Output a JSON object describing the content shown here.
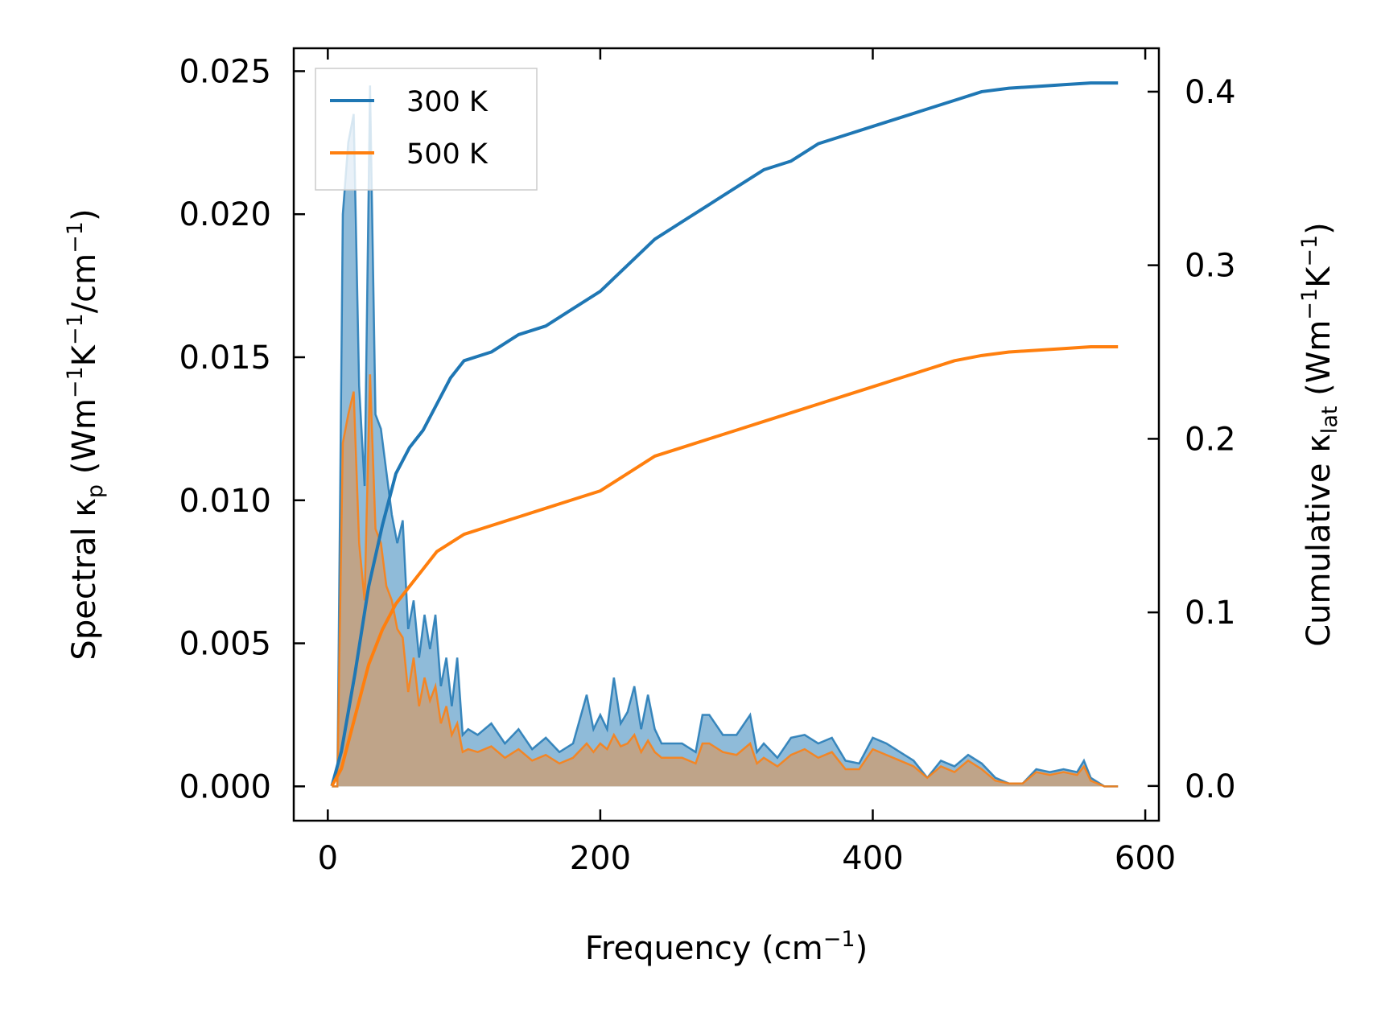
{
  "chart_data": {
    "type": "line",
    "title": "",
    "xlabel": {
      "main": "Frequency (cm",
      "sup": "−1",
      "tail": ")"
    },
    "ylabel_left": {
      "a": "Spectral κ",
      "sub": "p",
      "b": " (Wm",
      "sup1": "−1",
      "c": "K",
      "sup2": "−1",
      "d": "/cm",
      "sup3": "−1",
      "e": ")"
    },
    "ylabel_right": {
      "a": "Cumulative κ",
      "sub": "lat",
      "b": " (Wm",
      "sup1": "−1",
      "c": "K",
      "sup2": "−1",
      "d": ")"
    },
    "xlim": [
      -25,
      610
    ],
    "ylim_left": [
      -0.0012,
      0.0258
    ],
    "ylim_right": [
      -0.02,
      0.425
    ],
    "xticks": [
      0,
      200,
      400,
      600
    ],
    "xtick_labels": [
      "0",
      "200",
      "400",
      "600"
    ],
    "yticks_left": [
      0.0,
      0.005,
      0.01,
      0.015,
      0.02,
      0.025
    ],
    "ytick_labels_left": [
      "0.000",
      "0.005",
      "0.010",
      "0.015",
      "0.020",
      "0.025"
    ],
    "yticks_right": [
      0.0,
      0.1,
      0.2,
      0.3,
      0.4
    ],
    "ytick_labels_right": [
      "0.0",
      "0.1",
      "0.2",
      "0.3",
      "0.4"
    ],
    "legend_position": "top-left",
    "colors": {
      "series_300": "#1f77b4",
      "series_500": "#ff7f0e",
      "fill_500": "#c8a07a"
    },
    "spectral": {
      "x": [
        3,
        7,
        11,
        15,
        19,
        23,
        27,
        31,
        35,
        39,
        43,
        47,
        51,
        55,
        59,
        63,
        67,
        71,
        75,
        79,
        83,
        87,
        91,
        95,
        99,
        103,
        110,
        120,
        130,
        140,
        150,
        160,
        170,
        180,
        190,
        195,
        200,
        205,
        210,
        215,
        220,
        225,
        230,
        235,
        240,
        245,
        250,
        260,
        270,
        275,
        280,
        290,
        300,
        310,
        315,
        320,
        330,
        340,
        350,
        360,
        370,
        380,
        390,
        400,
        410,
        420,
        430,
        440,
        450,
        460,
        470,
        480,
        490,
        500,
        510,
        520,
        530,
        540,
        550,
        555,
        560,
        570,
        580
      ],
      "series": [
        {
          "name": "300 K",
          "values": [
            0,
            0,
            0.02,
            0.0225,
            0.0235,
            0.014,
            0.0105,
            0.0245,
            0.013,
            0.0125,
            0.011,
            0.0095,
            0.0085,
            0.0093,
            0.0055,
            0.0065,
            0.0045,
            0.006,
            0.0048,
            0.006,
            0.0035,
            0.0045,
            0.0028,
            0.0045,
            0.0018,
            0.002,
            0.0018,
            0.0022,
            0.0015,
            0.002,
            0.0013,
            0.0017,
            0.0012,
            0.0015,
            0.0032,
            0.002,
            0.0025,
            0.002,
            0.0038,
            0.0022,
            0.0026,
            0.0035,
            0.002,
            0.0032,
            0.002,
            0.0015,
            0.0015,
            0.0015,
            0.0012,
            0.0025,
            0.0025,
            0.0018,
            0.0018,
            0.0025,
            0.0012,
            0.0015,
            0.001,
            0.0017,
            0.0018,
            0.0015,
            0.0017,
            0.0009,
            0.0008,
            0.0017,
            0.0015,
            0.0012,
            0.0009,
            0.0003,
            0.0009,
            0.0007,
            0.0011,
            0.0008,
            0.0003,
            0.0001,
            0.0001,
            0.0006,
            0.0005,
            0.0006,
            0.0005,
            0.0009,
            0.0003,
            0,
            0
          ]
        },
        {
          "name": "500 K",
          "values": [
            0,
            0,
            0.012,
            0.013,
            0.0138,
            0.0085,
            0.0065,
            0.0144,
            0.009,
            0.0085,
            0.007,
            0.0065,
            0.0055,
            0.0052,
            0.0033,
            0.0045,
            0.0028,
            0.0038,
            0.003,
            0.0035,
            0.0022,
            0.0028,
            0.0018,
            0.0022,
            0.0012,
            0.0013,
            0.0012,
            0.0014,
            0.001,
            0.0013,
            0.0009,
            0.0011,
            0.0008,
            0.001,
            0.0015,
            0.0012,
            0.0015,
            0.0013,
            0.0018,
            0.0014,
            0.0015,
            0.0018,
            0.0012,
            0.0016,
            0.0012,
            0.001,
            0.001,
            0.001,
            0.0008,
            0.0015,
            0.0015,
            0.0012,
            0.0011,
            0.0015,
            0.0008,
            0.001,
            0.0007,
            0.0011,
            0.0013,
            0.001,
            0.0012,
            0.0006,
            0.0006,
            0.0013,
            0.0011,
            0.0009,
            0.0007,
            0.0003,
            0.0007,
            0.0005,
            0.0009,
            0.0006,
            0.0002,
            0.0001,
            0.0001,
            0.0005,
            0.0004,
            0.0005,
            0.0004,
            0.0007,
            0.0002,
            0,
            0
          ]
        }
      ]
    },
    "cumulative": {
      "x": [
        3,
        10,
        20,
        30,
        40,
        50,
        60,
        70,
        80,
        90,
        100,
        120,
        140,
        160,
        180,
        200,
        220,
        240,
        260,
        280,
        300,
        320,
        340,
        360,
        380,
        400,
        420,
        440,
        460,
        480,
        500,
        520,
        540,
        560,
        580
      ],
      "series": [
        {
          "name": "300 K",
          "values": [
            0,
            0.02,
            0.065,
            0.115,
            0.15,
            0.18,
            0.195,
            0.205,
            0.22,
            0.235,
            0.245,
            0.25,
            0.26,
            0.265,
            0.275,
            0.285,
            0.3,
            0.315,
            0.325,
            0.335,
            0.345,
            0.355,
            0.36,
            0.37,
            0.375,
            0.38,
            0.385,
            0.39,
            0.395,
            0.4,
            0.402,
            0.403,
            0.404,
            0.405,
            0.405
          ]
        },
        {
          "name": "500 K",
          "values": [
            0,
            0.01,
            0.04,
            0.07,
            0.09,
            0.105,
            0.115,
            0.125,
            0.135,
            0.14,
            0.145,
            0.15,
            0.155,
            0.16,
            0.165,
            0.17,
            0.18,
            0.19,
            0.195,
            0.2,
            0.205,
            0.21,
            0.215,
            0.22,
            0.225,
            0.23,
            0.235,
            0.24,
            0.245,
            0.248,
            0.25,
            0.251,
            0.252,
            0.253,
            0.253
          ]
        }
      ]
    }
  }
}
